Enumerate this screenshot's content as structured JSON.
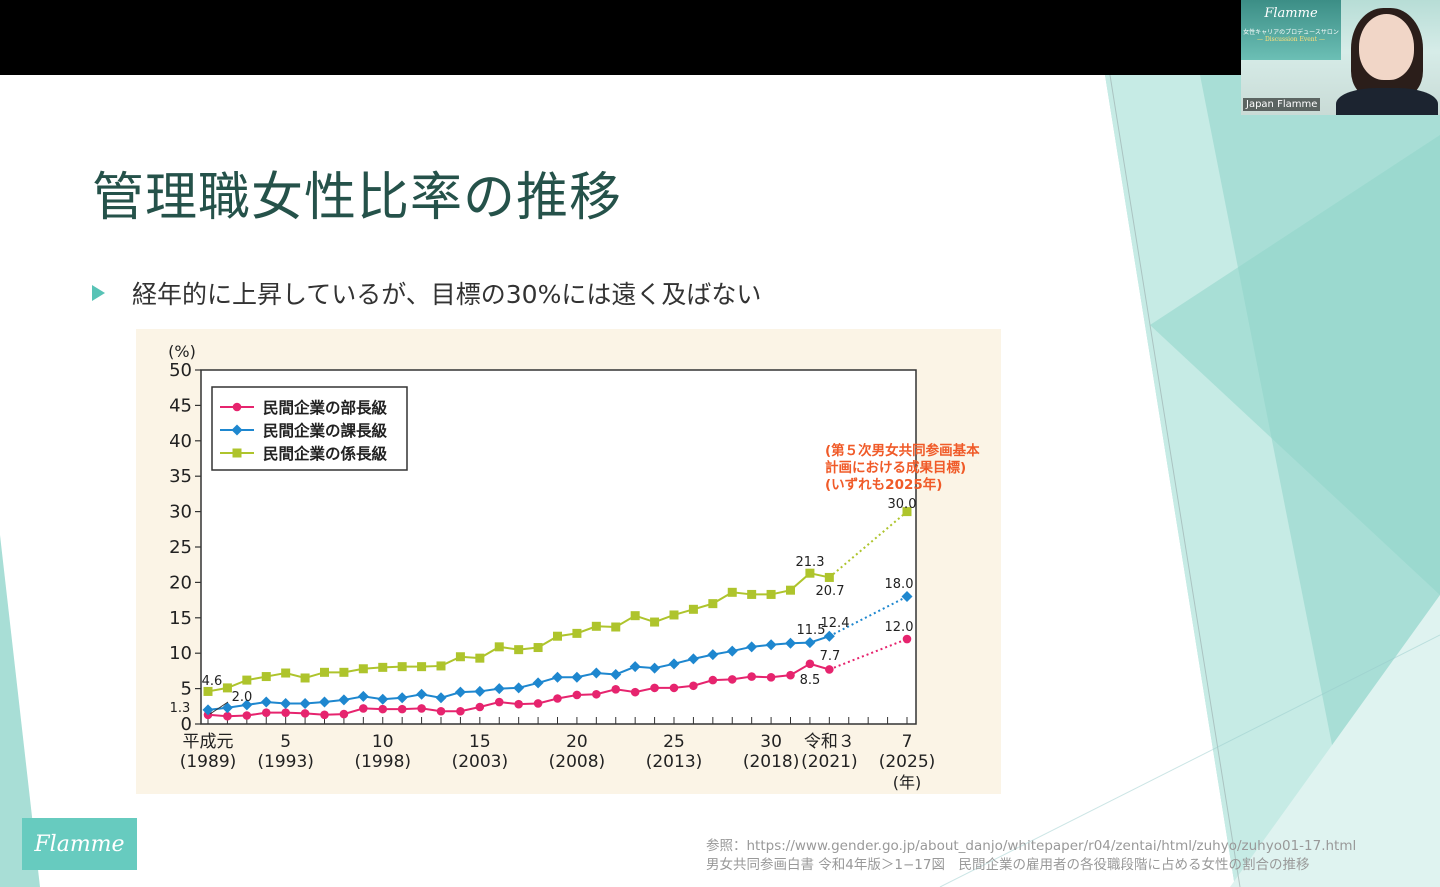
{
  "slide": {
    "title": "管理職女性比率の推移",
    "bullet": "経年的に上昇しているが、目標の30%には遠く及ばない",
    "source_line1": "参照：https://www.gender.go.jp/about_danjo/whitepaper/r04/zentai/html/zuhyo/zuhyo01-17.html",
    "source_line2": "男女共同参画白書 令和4年版＞1−17図　民間企業の雇用者の各役職段階に占める女性の割合の推移",
    "logo_text": "Flamme"
  },
  "video": {
    "participant_name": "Japan Flamme",
    "banner_title": "Flamme",
    "banner_sub": "女性キャリアのプロデュースサロン",
    "banner_tag": "— Discussion Event —"
  },
  "colors": {
    "accent_teal": "#67cbbf",
    "title_green": "#25524a",
    "series_bucho": "#e6246e",
    "series_kacho": "#1e87cf",
    "series_kakari": "#aec42c",
    "target_annotation": "#f05a28"
  },
  "chart_data": {
    "type": "line",
    "ylabel": "(%)",
    "xlabel": "(年)",
    "ylim": [
      0,
      50
    ],
    "yticks": [
      0,
      5,
      10,
      15,
      20,
      25,
      30,
      35,
      40,
      45,
      50
    ],
    "xlim": [
      1989,
      2025
    ],
    "xticks": [
      {
        "x": 1989,
        "top": "平成元",
        "bottom": "(1989)"
      },
      {
        "x": 1993,
        "top": "5",
        "bottom": "(1993)"
      },
      {
        "x": 1998,
        "top": "10",
        "bottom": "(1998)"
      },
      {
        "x": 2003,
        "top": "15",
        "bottom": "(2003)"
      },
      {
        "x": 2008,
        "top": "20",
        "bottom": "(2008)"
      },
      {
        "x": 2013,
        "top": "25",
        "bottom": "(2013)"
      },
      {
        "x": 2018,
        "top": "30",
        "bottom": "(2018)"
      },
      {
        "x": 2021,
        "top": "令和３",
        "bottom": "(2021)"
      },
      {
        "x": 2025,
        "top": "7",
        "bottom": "(2025)"
      }
    ],
    "legend_position": "top-left",
    "x": [
      1989,
      1990,
      1991,
      1992,
      1993,
      1994,
      1995,
      1996,
      1997,
      1998,
      1999,
      2000,
      2001,
      2002,
      2003,
      2004,
      2005,
      2006,
      2007,
      2008,
      2009,
      2010,
      2011,
      2012,
      2013,
      2014,
      2015,
      2016,
      2017,
      2018,
      2019,
      2020,
      2021
    ],
    "series": [
      {
        "name": "民間企業の部長級",
        "key": "series_bucho",
        "marker": "circle",
        "values": [
          1.3,
          1.1,
          1.2,
          1.6,
          1.6,
          1.5,
          1.3,
          1.4,
          2.2,
          2.1,
          2.1,
          2.2,
          1.8,
          1.8,
          2.4,
          3.1,
          2.8,
          2.9,
          3.6,
          4.1,
          4.2,
          4.9,
          4.5,
          5.1,
          5.1,
          5.4,
          6.2,
          6.3,
          6.7,
          6.6,
          6.9,
          8.5,
          7.7
        ],
        "target": {
          "x": 2025,
          "value": 12.0
        }
      },
      {
        "name": "民間企業の課長級",
        "key": "series_kacho",
        "marker": "diamond",
        "values": [
          2.0,
          2.3,
          2.7,
          3.1,
          2.9,
          2.9,
          3.1,
          3.4,
          3.9,
          3.5,
          3.7,
          4.2,
          3.7,
          4.5,
          4.6,
          5.0,
          5.1,
          5.8,
          6.6,
          6.6,
          7.2,
          7.0,
          8.1,
          7.9,
          8.5,
          9.2,
          9.8,
          10.3,
          10.9,
          11.2,
          11.4,
          11.5,
          12.4
        ],
        "target": {
          "x": 2025,
          "value": 18.0
        }
      },
      {
        "name": "民間企業の係長級",
        "key": "series_kakari",
        "marker": "square",
        "values": [
          4.6,
          5.1,
          6.2,
          6.7,
          7.2,
          6.5,
          7.3,
          7.3,
          7.8,
          8.0,
          8.1,
          8.1,
          8.2,
          9.5,
          9.3,
          10.9,
          10.5,
          10.8,
          12.4,
          12.8,
          13.8,
          13.7,
          15.3,
          14.4,
          15.4,
          16.2,
          17.0,
          18.6,
          18.3,
          18.3,
          18.9,
          21.3,
          20.7
        ],
        "target": {
          "x": 2025,
          "value": 30.0
        }
      }
    ],
    "annotations": {
      "start_bucho": "1.3",
      "start_kacho": "2.0",
      "start_kakari": "4.6",
      "kakari_2020": "21.3",
      "kakari_2021": "20.7",
      "kacho_2020": "11.5",
      "kacho_2021": "12.4",
      "bucho_2020": "8.5",
      "bucho_2021": "7.7",
      "target_kakari": "30.0",
      "target_kacho": "18.0",
      "target_bucho": "12.0",
      "target_note": [
        "(第５次男女共同参画基本",
        "計画における成果目標)",
        "(いずれも2025年)"
      ]
    }
  }
}
